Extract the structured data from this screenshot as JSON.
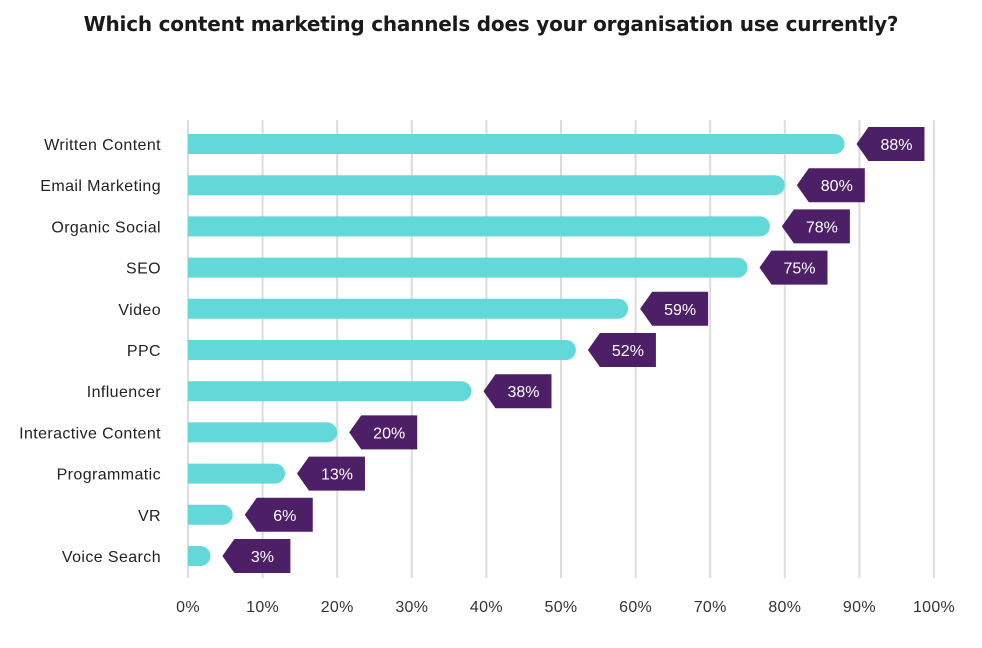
{
  "chart_data": {
    "type": "bar",
    "orientation": "horizontal",
    "title": "Which content marketing channels does your organisation use currently?",
    "categories": [
      "Written Content",
      "Email Marketing",
      "Organic Social",
      "SEO",
      "Video",
      "PPC",
      "Influencer",
      "Interactive Content",
      "Programmatic",
      "VR",
      "Voice Search"
    ],
    "values": [
      88,
      80,
      78,
      75,
      59,
      52,
      38,
      20,
      13,
      6,
      3
    ],
    "value_labels": [
      "88%",
      "80%",
      "78%",
      "75%",
      "59%",
      "52%",
      "38%",
      "20%",
      "13%",
      "6%",
      "3%"
    ],
    "x_ticks": [
      "0%",
      "10%",
      "20%",
      "30%",
      "40%",
      "50%",
      "60%",
      "70%",
      "80%",
      "90%",
      "100%"
    ],
    "xlim": [
      0,
      100
    ],
    "grid": true,
    "legend": "none",
    "colors": {
      "bar": "#63d8d8",
      "label_tag": "#4d1f66",
      "grid": "#dcdcdc"
    }
  }
}
